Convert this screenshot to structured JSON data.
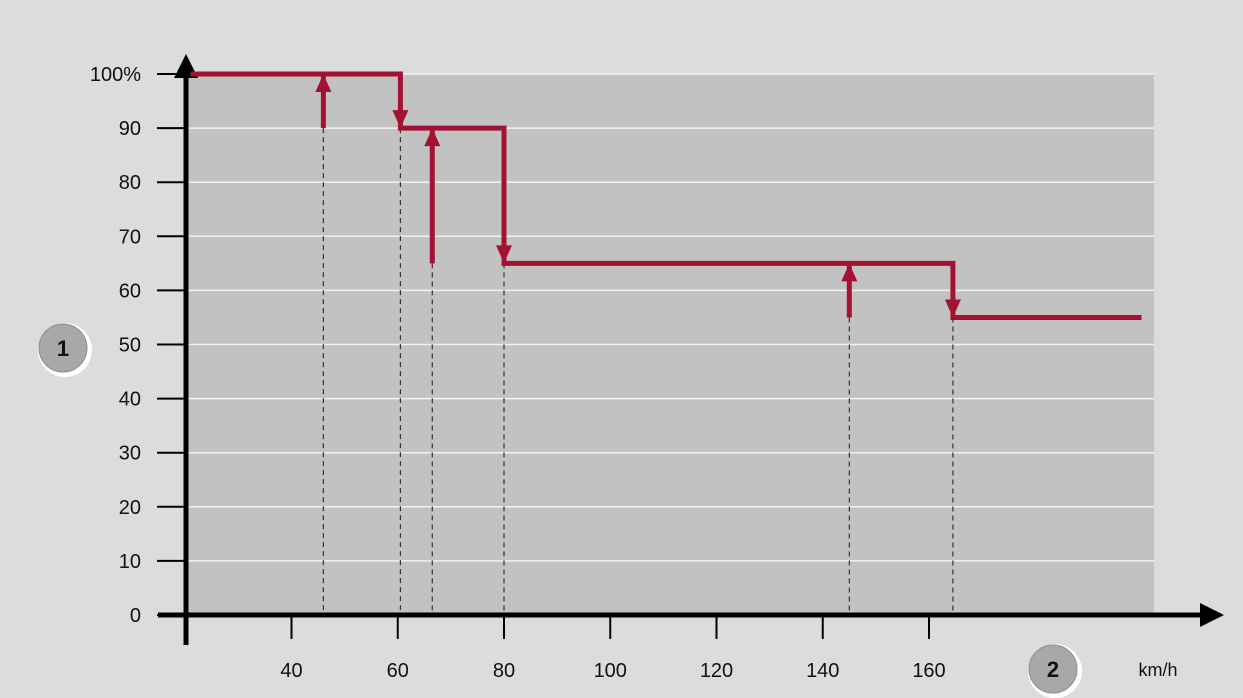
{
  "chart_data": {
    "type": "line",
    "title": "",
    "xlabel": "km/h",
    "ylabel": "",
    "xlim": [
      20,
      200
    ],
    "ylim": [
      0,
      100
    ],
    "x_ticks": [
      40,
      60,
      80,
      100,
      120,
      140,
      160
    ],
    "y_ticks": [
      0,
      10,
      20,
      30,
      40,
      50,
      60,
      70,
      80,
      90,
      100
    ],
    "y_tick_labels": [
      "0",
      "10",
      "20",
      "30",
      "40",
      "50",
      "60",
      "70",
      "80",
      "90",
      "100%"
    ],
    "grid": true,
    "series": [
      {
        "name": "",
        "color": "#a31233",
        "step_path": [
          [
            21,
            100
          ],
          [
            60.5,
            100
          ],
          [
            60.5,
            90
          ],
          [
            80,
            90
          ],
          [
            80,
            65
          ],
          [
            164.5,
            65
          ],
          [
            164.5,
            55
          ],
          [
            200,
            55
          ]
        ],
        "upshift_path": [
          [
            46,
            90
          ],
          [
            46,
            100
          ]
        ],
        "upshift_path_2": [
          [
            66.5,
            65
          ],
          [
            66.5,
            90
          ]
        ],
        "upshift_path_3": [
          [
            145,
            55
          ],
          [
            145,
            65
          ]
        ]
      }
    ],
    "transitions": [
      {
        "x": 46,
        "from": 90,
        "to": 100,
        "direction": "up"
      },
      {
        "x": 60.5,
        "from": 100,
        "to": 90,
        "direction": "down"
      },
      {
        "x": 66.5,
        "from": 65,
        "to": 90,
        "direction": "up"
      },
      {
        "x": 80,
        "from": 90,
        "to": 65,
        "direction": "down"
      },
      {
        "x": 145,
        "from": 55,
        "to": 65,
        "direction": "up"
      },
      {
        "x": 164.5,
        "from": 65,
        "to": 55,
        "direction": "down"
      }
    ],
    "callouts": [
      {
        "id": "y-axis-callout",
        "label": "1"
      },
      {
        "id": "x-axis-callout",
        "label": "2"
      }
    ],
    "colors": {
      "background": "#dcdcdc",
      "plot_area": "#c2c2c2",
      "gridline": "#f2f2f2",
      "axis": "#000000",
      "line": "#a31233"
    }
  }
}
